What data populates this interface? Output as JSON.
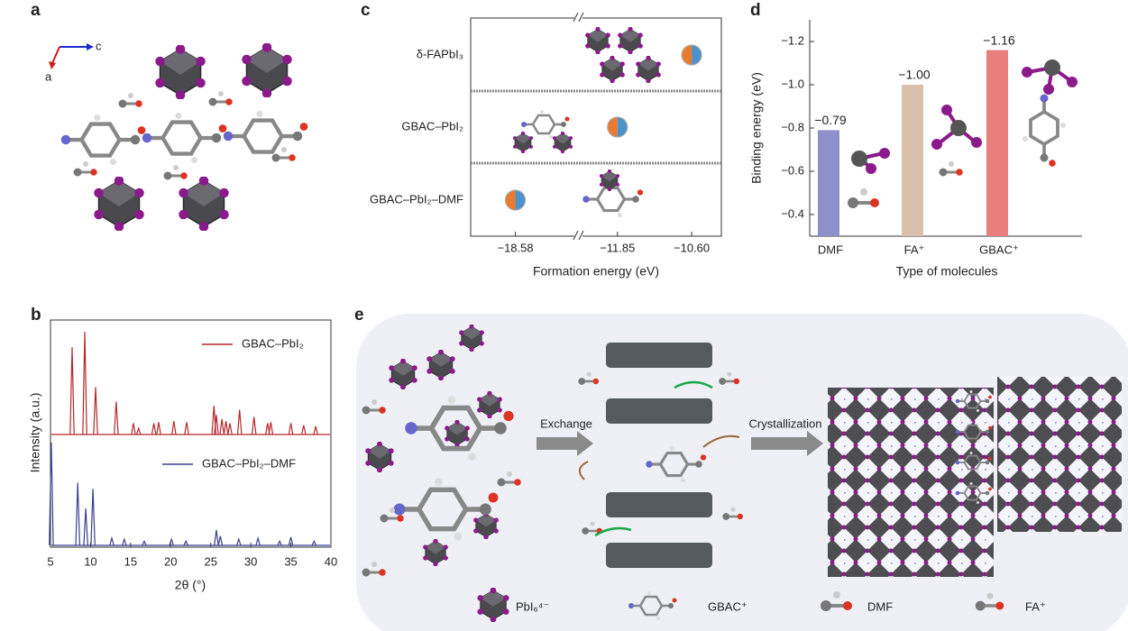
{
  "panel_labels": [
    "a",
    "b",
    "c",
    "d",
    "e"
  ],
  "panel_a": {
    "axes": [
      "c",
      "a"
    ]
  },
  "panel_e": {
    "steps": [
      "Exchange",
      "Crystallization"
    ],
    "legend": [
      "PbI₆⁴⁻",
      "GBAC⁺",
      "DMF",
      "FA⁺"
    ]
  },
  "chart_data": [
    {
      "type": "dot",
      "xlabel": "Formation energy (eV)",
      "categories": [
        "δ-FAPbI₃",
        "GBAC–PbI₂",
        "GBAC–PbI₂–DMF"
      ],
      "values": [
        -10.6,
        -11.85,
        -18.58
      ],
      "xlim": [
        [
          -19,
          -18
        ],
        [
          -12.5,
          -10.1
        ]
      ],
      "xticks": [
        {
          "value": -18.58,
          "label": "−18.58"
        },
        {
          "value": -11.85,
          "label": "−11.85"
        },
        {
          "value": -10.6,
          "label": "−10.60"
        }
      ]
    },
    {
      "type": "bar",
      "xlabel": "Type of molecules",
      "ylabel": "Binding energy (eV)",
      "categories": [
        "DMF",
        "FA⁺",
        "GBAC⁺"
      ],
      "values": [
        -0.79,
        -1.0,
        -1.16
      ],
      "value_labels": [
        "−0.79",
        "−1.00",
        "−1.16"
      ],
      "colors": [
        "#8e90c9",
        "#d9c0ad",
        "#e97f7c"
      ],
      "ylim": [
        -0.3,
        -1.3
      ],
      "yticks": [
        {
          "value": -1.2,
          "label": "−1.2"
        },
        {
          "value": -1.0,
          "label": "−1.0"
        },
        {
          "value": -0.8,
          "label": "−0.8"
        },
        {
          "value": -0.6,
          "label": "−0.6"
        },
        {
          "value": -0.4,
          "label": "−0.4"
        }
      ]
    },
    {
      "type": "spectrum",
      "xlabel": "2θ (°)",
      "ylabel": "Intensity (a.u.)",
      "xlim": [
        5,
        40
      ],
      "xticks": [
        5,
        10,
        15,
        20,
        25,
        30,
        35,
        40
      ],
      "ylim": [
        0,
        1
      ],
      "series": [
        {
          "name": "GBAC–PbI₂",
          "color": "#b5282c",
          "x": [
            7.7,
            9.28,
            10.63,
            13.2,
            15.35,
            16.0,
            17.9,
            18.5,
            20.4,
            22.0,
            25.4,
            25.7,
            26.4,
            26.9,
            27.4,
            28.6,
            30.4,
            32.1,
            32.5,
            35.0,
            36.6,
            38.1
          ],
          "values": [
            0.85,
            1,
            0.46,
            0.32,
            0.11,
            0.06,
            0.11,
            0.12,
            0.13,
            0.12,
            0.28,
            0.19,
            0.15,
            0.13,
            0.11,
            0.24,
            0.17,
            0.11,
            0.12,
            0.11,
            0.09,
            0.08
          ]
        },
        {
          "name": "GBAC–PbI₂–DMF",
          "color": "#3b3d8f",
          "x": [
            5.1,
            8.4,
            9.4,
            10.3,
            12.65,
            14.2,
            16.7,
            20.1,
            21.9,
            25.7,
            26.2,
            28.5,
            30.9,
            33.6,
            35.0,
            37.9
          ],
          "values": [
            1,
            0.61,
            0.36,
            0.55,
            0.07,
            0.06,
            0.04,
            0.06,
            0.04,
            0.15,
            0.09,
            0.06,
            0.07,
            0.04,
            0.08,
            0.04
          ]
        }
      ]
    }
  ]
}
